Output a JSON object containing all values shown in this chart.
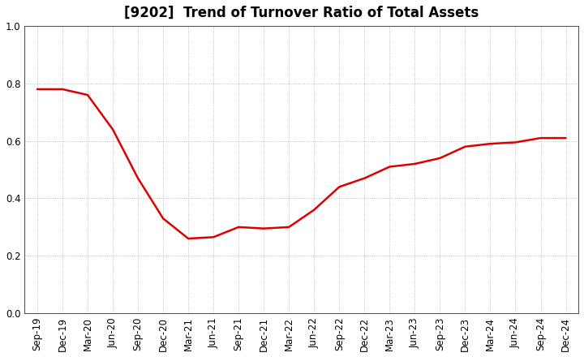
{
  "title": "[9202]  Trend of Turnover Ratio of Total Assets",
  "x_labels": [
    "Sep-19",
    "Dec-19",
    "Mar-20",
    "Jun-20",
    "Sep-20",
    "Dec-20",
    "Mar-21",
    "Jun-21",
    "Sep-21",
    "Dec-21",
    "Mar-22",
    "Jun-22",
    "Sep-22",
    "Dec-22",
    "Mar-23",
    "Jun-23",
    "Sep-23",
    "Dec-23",
    "Mar-24",
    "Jun-24",
    "Sep-24",
    "Dec-24"
  ],
  "y_values": [
    0.78,
    0.78,
    0.76,
    0.64,
    0.47,
    0.33,
    0.26,
    0.265,
    0.3,
    0.295,
    0.3,
    0.36,
    0.44,
    0.47,
    0.51,
    0.52,
    0.54,
    0.58,
    0.59,
    0.595,
    0.61,
    0.61
  ],
  "line_color": "#dd0000",
  "line_width": 1.8,
  "ylim": [
    0.0,
    1.0
  ],
  "yticks": [
    0.0,
    0.2,
    0.4,
    0.6,
    0.8,
    1.0
  ],
  "background_color": "#ffffff",
  "grid_color": "#999999",
  "title_fontsize": 12,
  "tick_fontsize": 8.5
}
